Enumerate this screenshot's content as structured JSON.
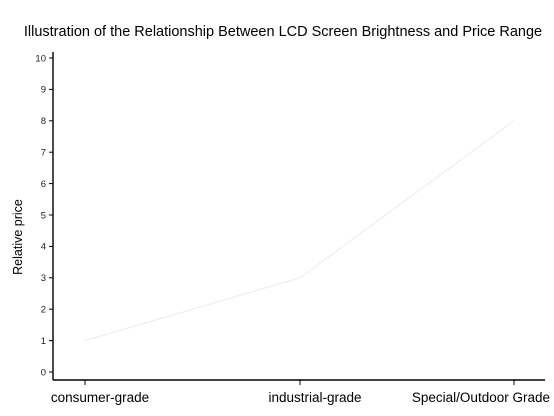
{
  "chart_data": {
    "type": "line",
    "title": "Illustration of the Relationship Between LCD Screen Brightness and Price Range",
    "xlabel": "",
    "ylabel": "Relative price",
    "categories": [
      "consumer-grade",
      "industrial-grade",
      "Special/Outdoor Grade"
    ],
    "series": [
      {
        "values": [
          1,
          3,
          8
        ]
      }
    ],
    "ylim": [
      0,
      10
    ],
    "yticks": [
      0,
      1,
      2,
      3,
      4,
      5,
      6,
      7,
      8,
      9,
      10
    ],
    "grid": false,
    "legend": "none",
    "colors": {
      "series_line": "#ececfa",
      "axis": "#000000"
    }
  }
}
